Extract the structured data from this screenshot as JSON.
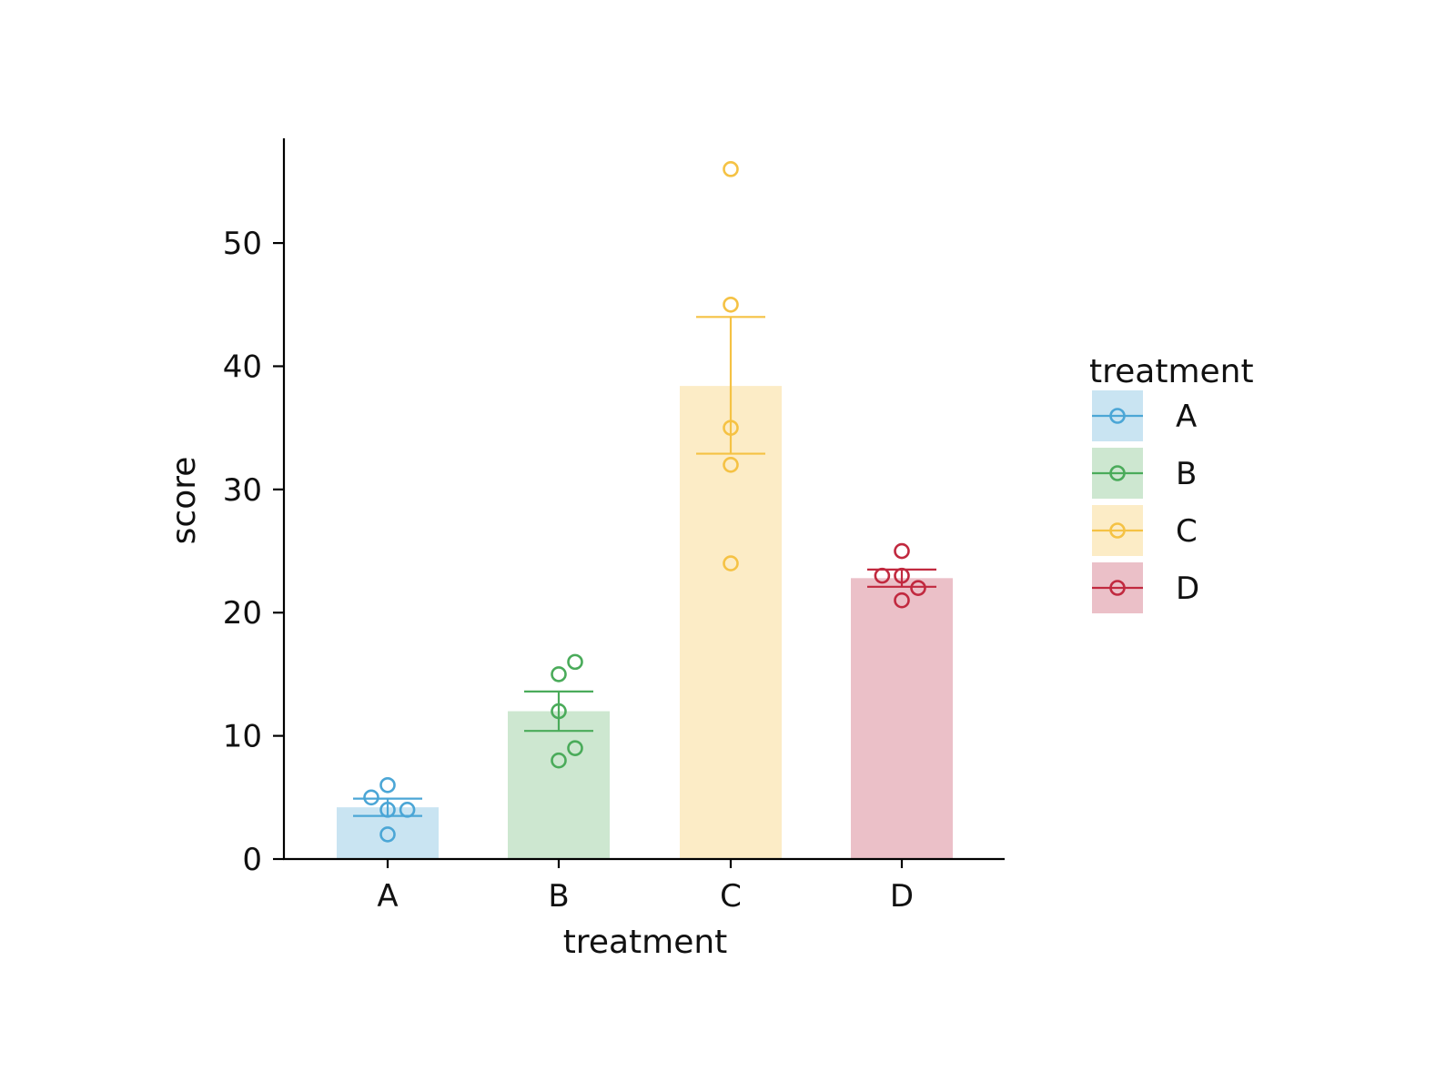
{
  "chart_data": {
    "type": "bar",
    "title": "",
    "xlabel": "treatment",
    "ylabel": "score",
    "categories": [
      "A",
      "B",
      "C",
      "D"
    ],
    "values": [
      4.2,
      12.0,
      38.4,
      22.8
    ],
    "error_bars": [
      {
        "low": 3.5,
        "high": 4.9
      },
      {
        "low": 10.4,
        "high": 13.6
      },
      {
        "low": 32.9,
        "high": 44.0
      },
      {
        "low": 22.1,
        "high": 23.5
      }
    ],
    "points": [
      [
        {
          "x": 0,
          "y": 6
        },
        {
          "x": -0.1,
          "y": 5
        },
        {
          "x": 0,
          "y": 4
        },
        {
          "x": 0.12,
          "y": 4
        },
        {
          "x": 0,
          "y": 2
        }
      ],
      [
        {
          "x": 0.1,
          "y": 16
        },
        {
          "x": 0,
          "y": 15
        },
        {
          "x": 0,
          "y": 12
        },
        {
          "x": 0.1,
          "y": 9
        },
        {
          "x": 0,
          "y": 8
        }
      ],
      [
        {
          "x": 0,
          "y": 56
        },
        {
          "x": 0,
          "y": 45
        },
        {
          "x": 0,
          "y": 35
        },
        {
          "x": 0,
          "y": 32
        },
        {
          "x": 0,
          "y": 24
        }
      ],
      [
        {
          "x": 0,
          "y": 25
        },
        {
          "x": -0.12,
          "y": 23
        },
        {
          "x": 0,
          "y": 23
        },
        {
          "x": 0.1,
          "y": 22
        },
        {
          "x": 0,
          "y": 21
        }
      ]
    ],
    "colors": [
      "#4ba6d6",
      "#4aab5a",
      "#f5c244",
      "#c1293f"
    ],
    "bar_colors": [
      "#c9e4f2",
      "#cde7d0",
      "#fcecc6",
      "#ebc0c8"
    ],
    "yticks": [
      0,
      10,
      20,
      30,
      40,
      50
    ],
    "ylim": [
      0,
      58.5
    ],
    "legend": {
      "title": "treatment",
      "entries": [
        "A",
        "B",
        "C",
        "D"
      ],
      "position": "right"
    },
    "grid": false
  }
}
